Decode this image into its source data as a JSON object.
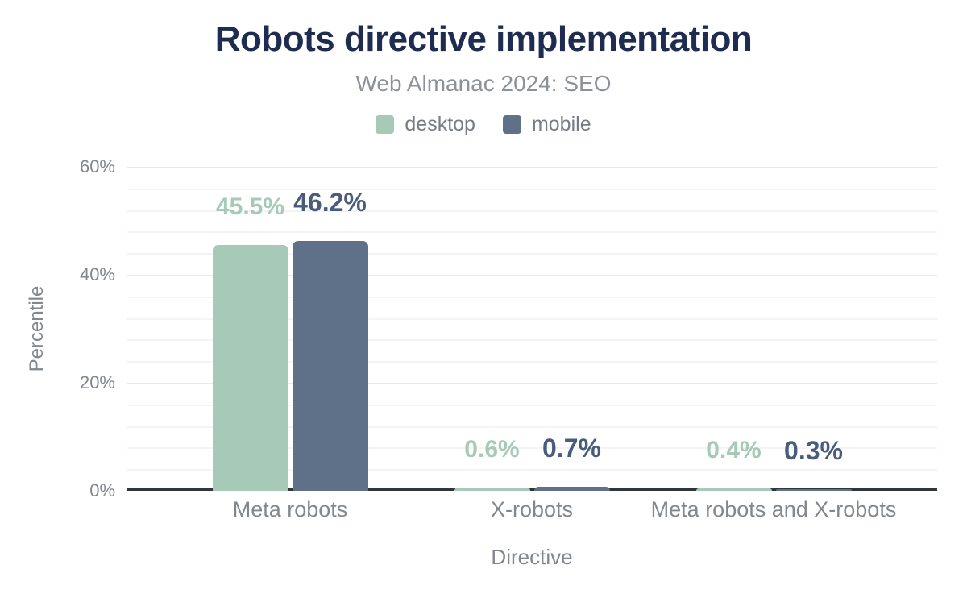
{
  "chart_data": {
    "type": "bar",
    "title": "Robots directive implementation",
    "subtitle": "Web Almanac 2024: SEO",
    "xlabel": "Directive",
    "ylabel": "Percentile",
    "ylim": [
      0,
      60
    ],
    "yticks": [
      {
        "value": 0,
        "label": "0%"
      },
      {
        "value": 20,
        "label": "20%"
      },
      {
        "value": 40,
        "label": "40%"
      },
      {
        "value": 60,
        "label": "60%"
      }
    ],
    "minor_grid_step": 4,
    "grid": true,
    "legend_position": "top",
    "categories": [
      "Meta robots",
      "X-robots",
      "Meta robots and X-robots"
    ],
    "series": [
      {
        "name": "desktop",
        "color": "#a6c9b8",
        "label_color": "#a6c9b8",
        "values": [
          45.5,
          0.6,
          0.4
        ],
        "labels": [
          "45.5%",
          "0.6%",
          "0.4%"
        ]
      },
      {
        "name": "mobile",
        "color": "#5f7189",
        "label_color": "#4a5c7c",
        "values": [
          46.2,
          0.7,
          0.3
        ],
        "labels": [
          "46.2%",
          "0.7%",
          "0.3%"
        ]
      }
    ],
    "colors": {
      "title": "#1f2c52",
      "subtitle": "#8d919a",
      "axis_text": "#82868f",
      "axis_line": "#31363c",
      "grid_major": "#e9e9eb",
      "grid_minor": "#f4f4f6"
    }
  }
}
